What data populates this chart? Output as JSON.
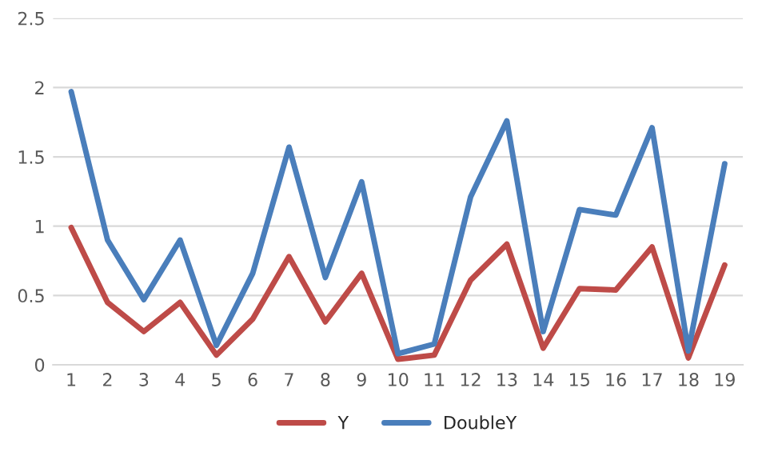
{
  "chart_data": {
    "type": "line",
    "categories": [
      "1",
      "2",
      "3",
      "4",
      "5",
      "6",
      "7",
      "8",
      "9",
      "10",
      "11",
      "12",
      "13",
      "14",
      "15",
      "16",
      "17",
      "18",
      "19"
    ],
    "series": [
      {
        "name": "Y",
        "color": "#be4b48",
        "values": [
          0.99,
          0.45,
          0.24,
          0.45,
          0.07,
          0.33,
          0.78,
          0.31,
          0.66,
          0.04,
          0.07,
          0.61,
          0.87,
          0.12,
          0.55,
          0.54,
          0.85,
          0.05,
          0.72
        ]
      },
      {
        "name": "DoubleY",
        "color": "#4a7ebb",
        "values": [
          1.97,
          0.9,
          0.47,
          0.9,
          0.14,
          0.66,
          1.57,
          0.63,
          1.32,
          0.08,
          0.15,
          1.21,
          1.76,
          0.24,
          1.12,
          1.08,
          1.71,
          0.1,
          1.45
        ]
      }
    ],
    "ylim": [
      0,
      2.5
    ],
    "yticks": [
      0,
      0.5,
      1,
      1.5,
      2,
      2.5
    ],
    "grid": "y",
    "legend": "bottom",
    "marker": "none",
    "line_style": "solid"
  }
}
